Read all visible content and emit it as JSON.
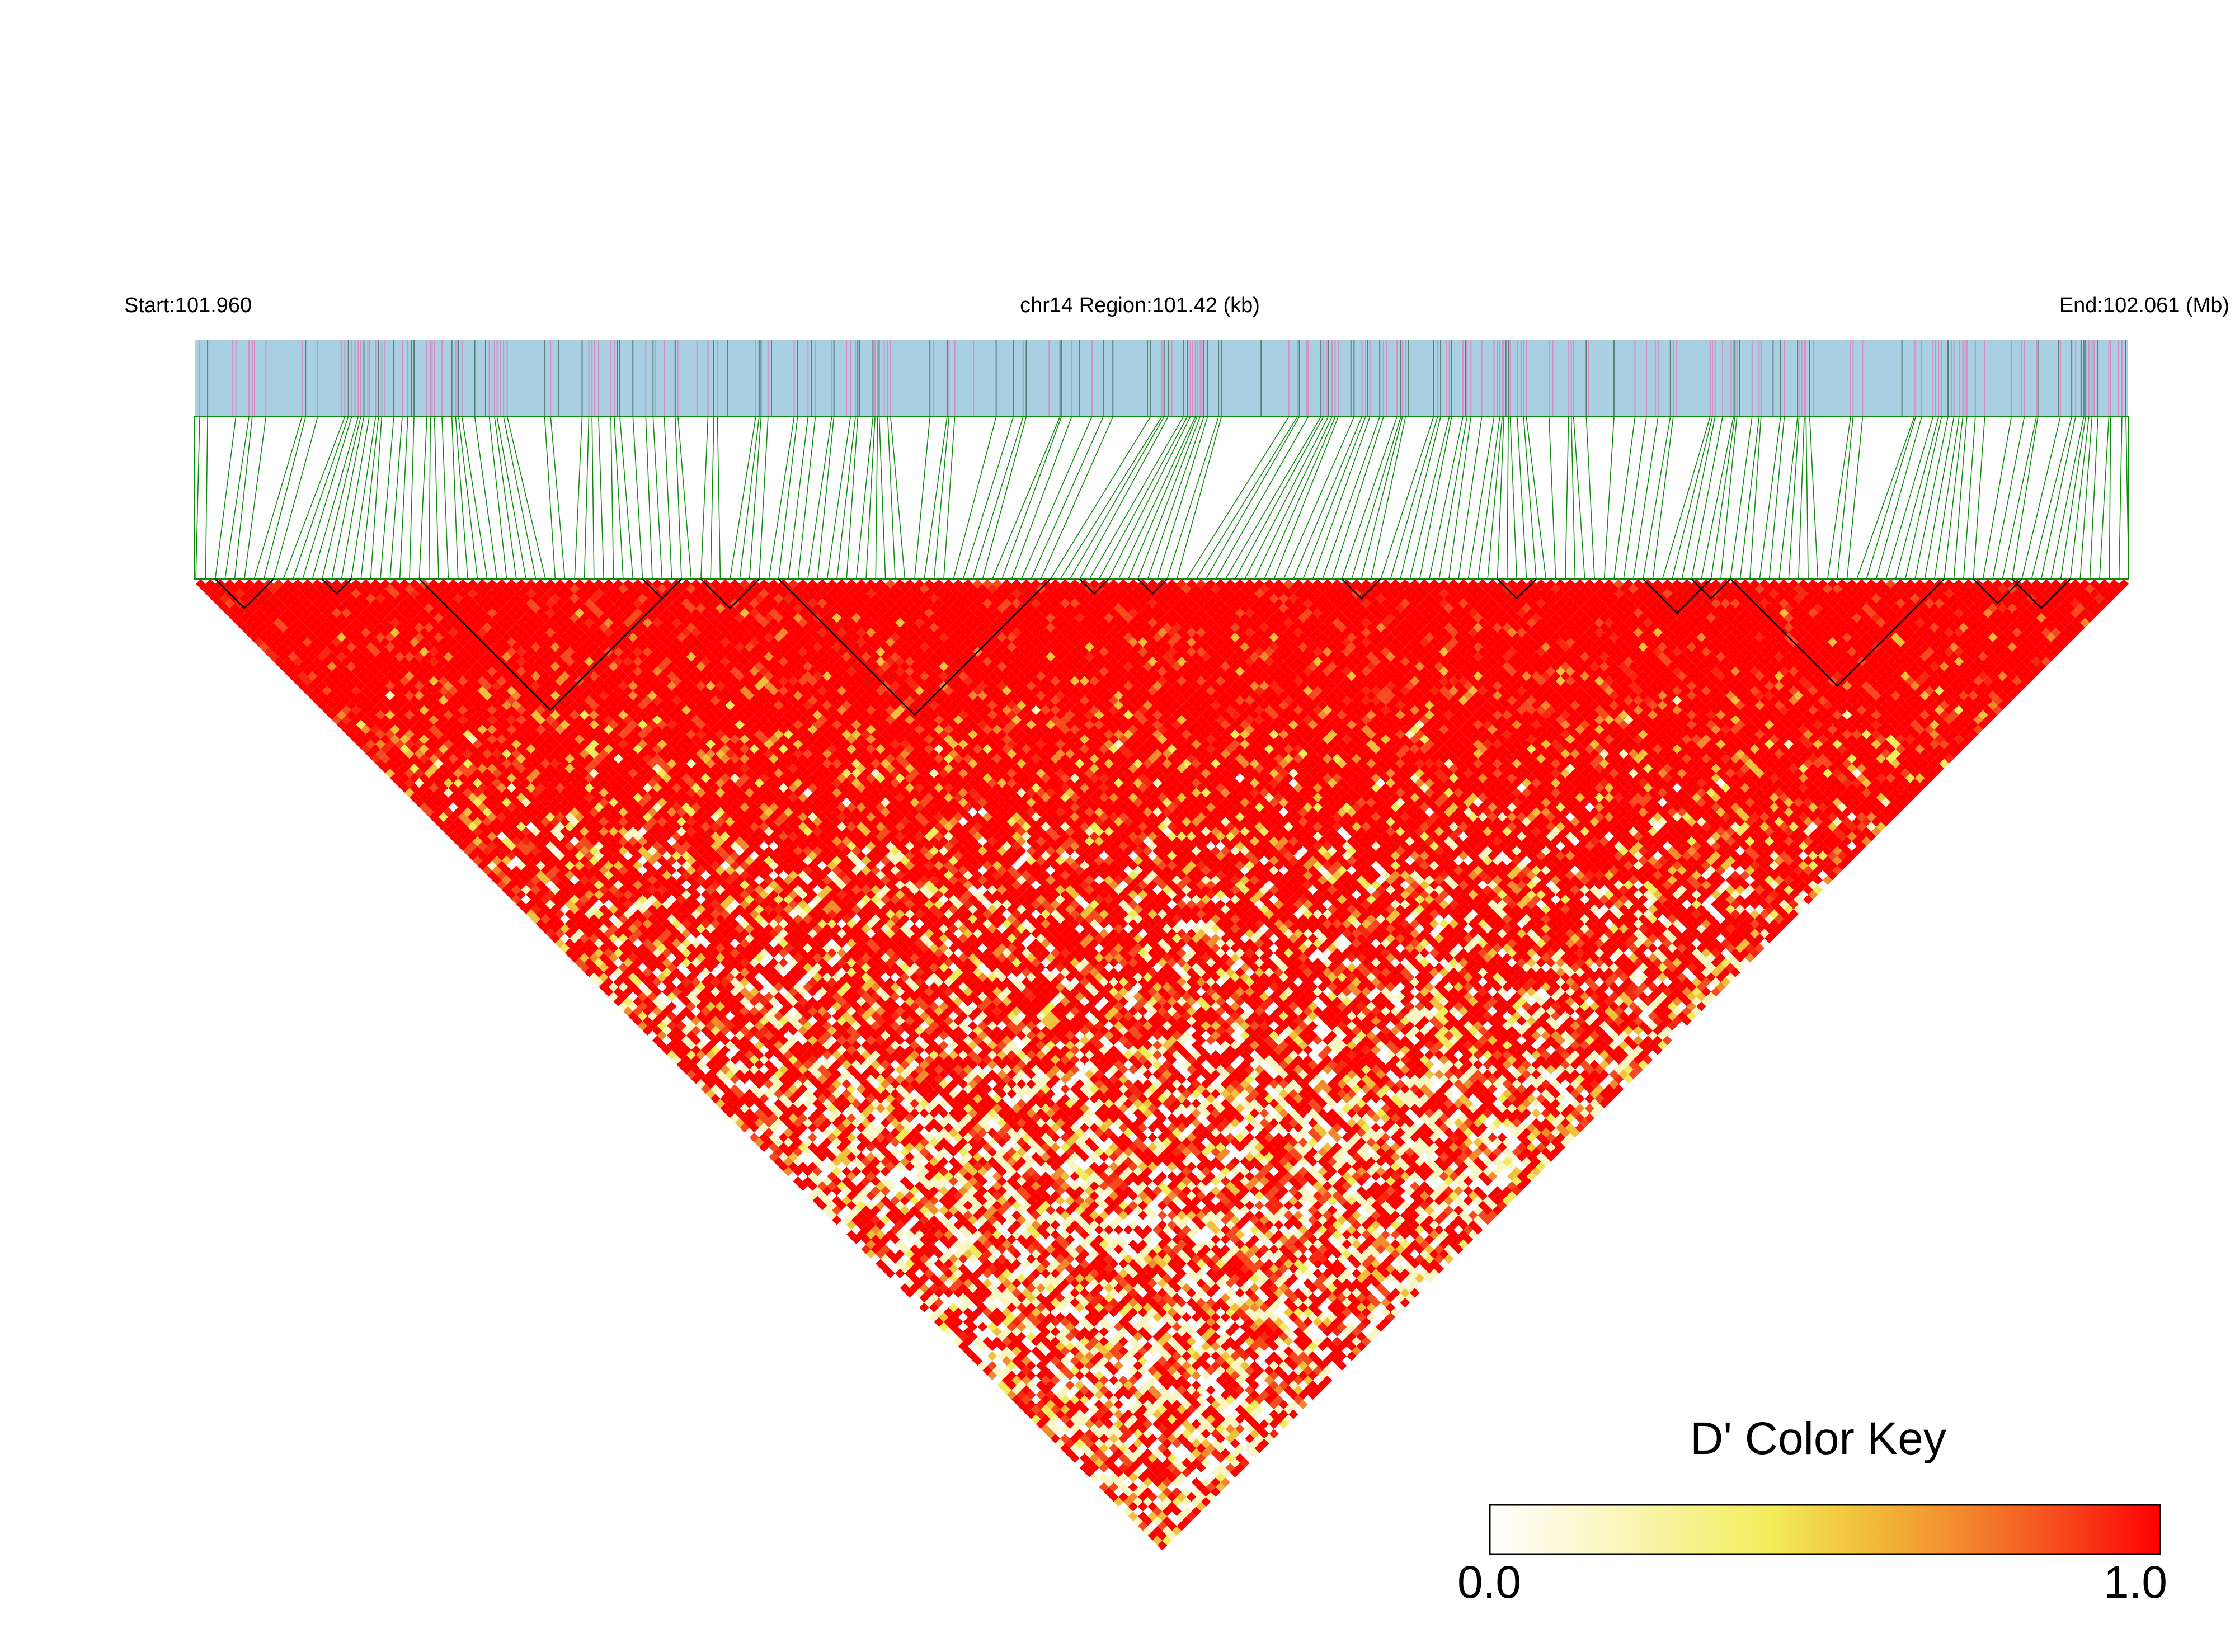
{
  "header": {
    "start_label": "Start:101.960",
    "region_label": "chr14 Region:101.42 (kb)",
    "end_label": "End:102.061 (Mb)"
  },
  "colors": {
    "track_bg": "#a8cfe2",
    "snp_tick_pink": "#d48fc0",
    "snp_tick_dark": "#5f7f7f",
    "connector_line": "#108a10",
    "block_outline": "#000000",
    "ld_high": "#ff0000",
    "ld_mid": "#f0e84a",
    "ld_low": "#ffffff"
  },
  "color_key": {
    "title": "D' Color Key",
    "min_label": "0.0",
    "max_label": "1.0",
    "stops": [
      "#ffffff",
      "#fbf7c4",
      "#f3ec5a",
      "#f2c13b",
      "#f28b2e",
      "#f64a1e",
      "#ff0000"
    ]
  },
  "chart_data": {
    "type": "heatmap",
    "title": "",
    "metric": "D'",
    "chromosome": "chr14",
    "region_start_mb": 101.96,
    "region_end_mb": 102.061,
    "region_kb": 101.42,
    "snp_count": 200,
    "value_range": [
      0.0,
      1.0
    ],
    "dominant_value": 1.0,
    "ld_blocks_snp_index_ranges": [
      [
        2,
        8
      ],
      [
        13,
        16
      ],
      [
        23,
        50
      ],
      [
        46,
        50
      ],
      [
        52,
        58
      ],
      [
        60,
        88
      ],
      [
        91,
        94
      ],
      [
        97,
        100
      ],
      [
        118,
        122
      ],
      [
        134,
        138
      ],
      [
        149,
        156
      ],
      [
        154,
        158
      ],
      [
        158,
        180
      ],
      [
        183,
        188
      ],
      [
        187,
        193
      ]
    ]
  }
}
